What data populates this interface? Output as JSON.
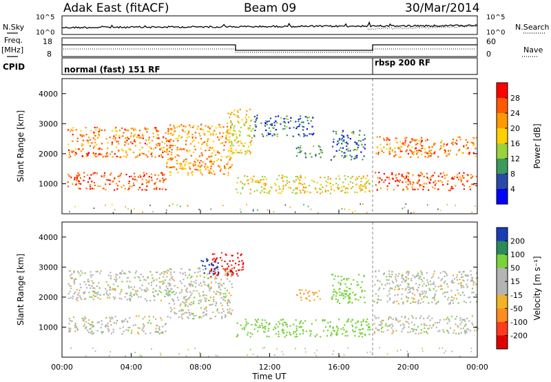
{
  "header": {
    "title": "Adak East (fitACF)",
    "beam": "Beam 09",
    "date": "30/Mar/2014"
  },
  "noise_panel": {
    "left_label": "N.Sky",
    "right_label": "N.Search",
    "left_ticks": [
      "10^5",
      "10^0"
    ],
    "right_ticks": [
      "10^5",
      "10^0"
    ]
  },
  "freq_panel": {
    "left_label": "Freq.",
    "left_unit": "[MHz]",
    "left_ticks": [
      "18",
      "8"
    ],
    "right_label": "Nave",
    "right_ticks": [
      "60",
      "0"
    ]
  },
  "cpid_panel": {
    "label": "CPID",
    "segments": [
      "normal (fast) 151 RF",
      "rbsp 200 RF"
    ]
  },
  "power_colorbar": {
    "label": "Power [dB]",
    "ticks": [
      "28",
      "24",
      "20",
      "16",
      "12",
      "8",
      "4"
    ],
    "colors": [
      "#ff0000",
      "#ff5a00",
      "#ff9a00",
      "#ffd000",
      "#9ad23c",
      "#3c9a5a",
      "#2a4aa8",
      "#0000ff"
    ]
  },
  "velocity_colorbar": {
    "label": "Velocity [m s⁻¹]",
    "ticks": [
      "200",
      "100",
      "50",
      "15",
      "-15",
      "-50",
      "-100",
      "-200"
    ],
    "colors": [
      "#1a3cb4",
      "#2a8a5a",
      "#78d23c",
      "#b4b4b4",
      "#b4b4b4",
      "#f0b428",
      "#ff8c1e",
      "#ff3c1e",
      "#e00000"
    ]
  },
  "chart_data": [
    {
      "type": "heatmap",
      "title": "",
      "xlabel": "",
      "ylabel": "Slant Range [km]",
      "xlim": [
        "00:00",
        "24:00"
      ],
      "ylim": [
        0,
        4500
      ],
      "yticks": [
        "1000",
        "2000",
        "3000",
        "4000"
      ],
      "parameter": "Power [dB]",
      "value_range": [
        0,
        30
      ],
      "echo_regions": [
        {
          "t0": 0.3,
          "t1": 6.5,
          "r0": 1900,
          "r1": 2900,
          "power": 24
        },
        {
          "t0": 0.3,
          "t1": 6.0,
          "r0": 800,
          "r1": 1400,
          "power": 26
        },
        {
          "t0": 6.0,
          "t1": 9.8,
          "r0": 1300,
          "r1": 3000,
          "power": 22
        },
        {
          "t0": 9.5,
          "t1": 11.0,
          "r0": 2000,
          "r1": 3500,
          "power": 18
        },
        {
          "t0": 11.0,
          "t1": 14.5,
          "r0": 2600,
          "r1": 3300,
          "power": 8
        },
        {
          "t0": 10.0,
          "t1": 17.8,
          "r0": 700,
          "r1": 1300,
          "power": 18
        },
        {
          "t0": 13.5,
          "t1": 15.0,
          "r0": 1900,
          "r1": 2300,
          "power": 10
        },
        {
          "t0": 15.5,
          "t1": 17.5,
          "r0": 1800,
          "r1": 2800,
          "power": 8
        },
        {
          "t0": 18.0,
          "t1": 24.0,
          "r0": 1900,
          "r1": 2600,
          "power": 24
        },
        {
          "t0": 18.0,
          "t1": 24.0,
          "r0": 800,
          "r1": 1400,
          "power": 26
        }
      ]
    },
    {
      "type": "heatmap",
      "title": "",
      "xlabel": "Time UT",
      "ylabel": "Slant Range [km]",
      "xlim": [
        "00:00",
        "24:00"
      ],
      "ylim": [
        0,
        4500
      ],
      "yticks": [
        "1000",
        "2000",
        "3000",
        "4000"
      ],
      "xticks": [
        "00:00",
        "04:00",
        "08:00",
        "12:00",
        "16:00",
        "20:00",
        "00:00"
      ],
      "parameter": "Velocity [m s⁻¹]",
      "value_range": [
        -250,
        250
      ],
      "echo_regions": [
        {
          "t0": 0.3,
          "t1": 6.5,
          "r0": 1900,
          "r1": 2900,
          "velocity": 0
        },
        {
          "t0": 0.3,
          "t1": 6.0,
          "r0": 800,
          "r1": 1400,
          "velocity": 0
        },
        {
          "t0": 6.0,
          "t1": 9.8,
          "r0": 1300,
          "r1": 3000,
          "velocity": 0
        },
        {
          "t0": 8.5,
          "t1": 10.5,
          "r0": 2700,
          "r1": 3500,
          "velocity": -200
        },
        {
          "t0": 8.0,
          "t1": 9.0,
          "r0": 2800,
          "r1": 3300,
          "velocity": 200
        },
        {
          "t0": 10.0,
          "t1": 17.8,
          "r0": 700,
          "r1": 1300,
          "velocity": 40
        },
        {
          "t0": 13.5,
          "t1": 15.0,
          "r0": 1900,
          "r1": 2300,
          "velocity": -50
        },
        {
          "t0": 15.5,
          "t1": 17.5,
          "r0": 1800,
          "r1": 2800,
          "velocity": 40
        },
        {
          "t0": 18.0,
          "t1": 24.0,
          "r0": 1800,
          "r1": 2900,
          "velocity": 0
        },
        {
          "t0": 18.0,
          "t1": 24.0,
          "r0": 800,
          "r1": 1400,
          "velocity": 0
        }
      ]
    }
  ]
}
